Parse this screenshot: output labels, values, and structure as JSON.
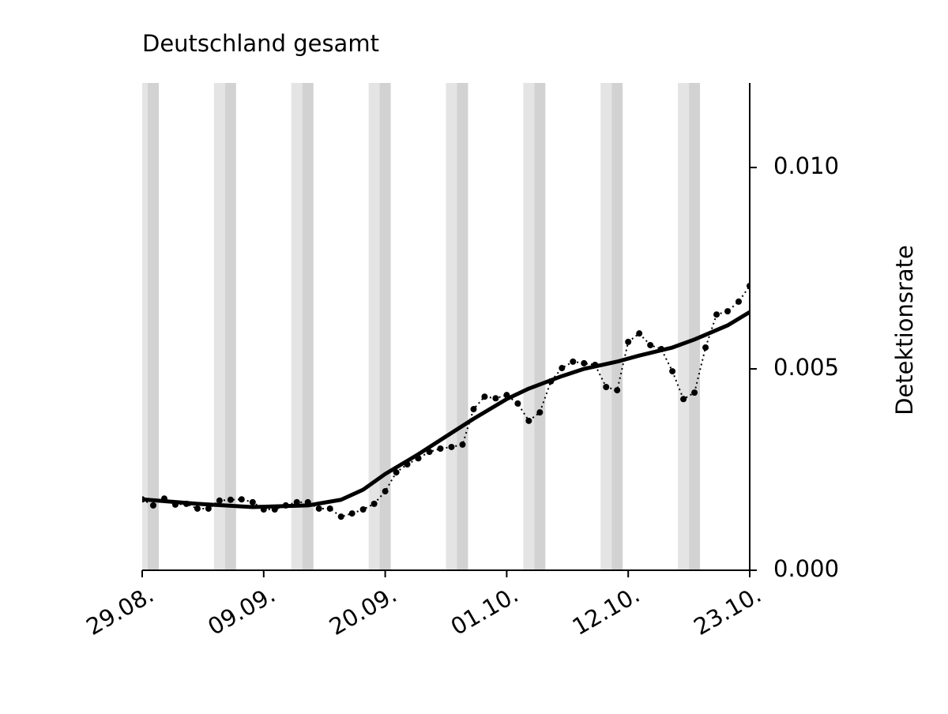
{
  "chart_data": {
    "type": "line",
    "title": "Deutschland gesamt",
    "y_label": "Detektionsrate",
    "ylim": [
      0,
      0.0121
    ],
    "yticks": [
      {
        "value": 0,
        "label": "0.000"
      },
      {
        "value": 0.005,
        "label": "0.005"
      },
      {
        "value": 0.01,
        "label": "0.010"
      }
    ],
    "xlim": [
      "29.08.",
      "23.10."
    ],
    "xticks": [
      "29.08.",
      "09.09.",
      "20.09.",
      "01.10.",
      "12.10.",
      "23.10."
    ],
    "series": [
      {
        "color": "#000000",
        "linestyle": "dotted",
        "markers": true,
        "x": [
          "29.08.",
          "30.08.",
          "31.08.",
          "01.09.",
          "02.09.",
          "03.09.",
          "04.09.",
          "05.09.",
          "06.09.",
          "07.09.",
          "08.09.",
          "09.09.",
          "10.09.",
          "11.09.",
          "12.09.",
          "13.09.",
          "14.09.",
          "15.09.",
          "16.09.",
          "17.09.",
          "18.09.",
          "19.09.",
          "20.09.",
          "21.09.",
          "22.09.",
          "23.09.",
          "24.09.",
          "25.09.",
          "26.09.",
          "27.09.",
          "28.09.",
          "29.09.",
          "30.09.",
          "01.10.",
          "02.10.",
          "03.10.",
          "04.10.",
          "05.10.",
          "06.10.",
          "07.10.",
          "08.10.",
          "09.10.",
          "10.10.",
          "11.10.",
          "12.10.",
          "13.10.",
          "14.10.",
          "15.10.",
          "16.10.",
          "17.10.",
          "18.10.",
          "19.10.",
          "20.10.",
          "21.10.",
          "22.10.",
          "23.10."
        ],
        "values": [
          0.00176,
          0.00161,
          0.00178,
          0.00163,
          0.00165,
          0.00153,
          0.00153,
          0.00173,
          0.00175,
          0.00176,
          0.00169,
          0.00151,
          0.00151,
          0.00161,
          0.00169,
          0.00169,
          0.00153,
          0.00153,
          0.00133,
          0.00141,
          0.00151,
          0.00165,
          0.00196,
          0.00243,
          0.00263,
          0.00278,
          0.00294,
          0.00302,
          0.00306,
          0.00312,
          0.004,
          0.00431,
          0.00427,
          0.00435,
          0.00414,
          0.00371,
          0.00392,
          0.00469,
          0.00502,
          0.00518,
          0.00514,
          0.0051,
          0.00455,
          0.00447,
          0.00567,
          0.00588,
          0.00559,
          0.00549,
          0.00494,
          0.00425,
          0.00441,
          0.00553,
          0.00635,
          0.00643,
          0.00667,
          0.00706
        ]
      },
      {
        "color": "#000000",
        "linestyle": "solid",
        "markers": false,
        "x": [
          "29.08.",
          "03.09.",
          "08.09.",
          "13.09.",
          "16.09.",
          "18.09.",
          "20.09.",
          "23.09.",
          "26.09.",
          "28.09.",
          "01.10.",
          "03.10.",
          "06.10.",
          "08.10.",
          "11.10.",
          "13.10.",
          "16.10.",
          "18.10.",
          "21.10.",
          "23.10."
        ],
        "values": [
          0.00176,
          0.00165,
          0.00157,
          0.00161,
          0.00175,
          0.002,
          0.00239,
          0.00288,
          0.00341,
          0.00376,
          0.00425,
          0.00451,
          0.00482,
          0.005,
          0.00518,
          0.00533,
          0.00553,
          0.00573,
          0.00608,
          0.00641
        ]
      }
    ]
  }
}
